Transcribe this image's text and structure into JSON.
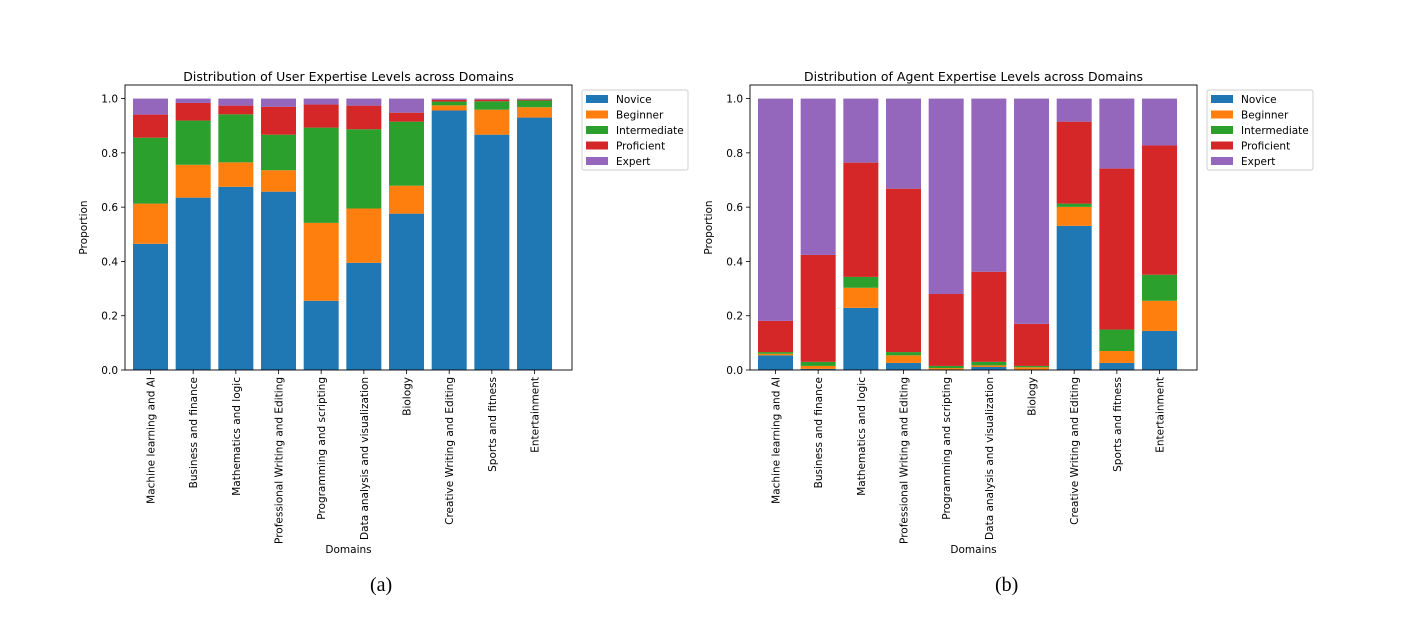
{
  "colors": {
    "Novice": "#1f77b4",
    "Beginner": "#ff7f0e",
    "Intermediate": "#2ca02c",
    "Proficient": "#d62728",
    "Expert": "#9467bd"
  },
  "captions": [
    "(a)",
    "(b)"
  ],
  "chart_data": [
    {
      "type": "bar",
      "stacked": true,
      "title": "Distribution of User Expertise Levels across Domains",
      "xlabel": "Domains",
      "ylabel": "Proportion",
      "ylim": [
        0,
        1.05
      ],
      "yticks": [
        "0.0",
        "0.2",
        "0.4",
        "0.6",
        "0.8",
        "1.0"
      ],
      "legend_placement": "outside-top-right",
      "categories": [
        "Machine learning and AI",
        "Business and finance",
        "Mathematics and logic",
        "Professional Writing and Editing",
        "Programming and scripting",
        "Data analysis and visualization",
        "Biology",
        "Creative Writing and Editing",
        "Sports and fitness",
        "Entertainment"
      ],
      "series": [
        {
          "name": "Novice",
          "values": [
            0.465,
            0.635,
            0.675,
            0.657,
            0.255,
            0.395,
            0.576,
            0.956,
            0.867,
            0.93
          ]
        },
        {
          "name": "Beginner",
          "values": [
            0.148,
            0.121,
            0.09,
            0.079,
            0.287,
            0.2,
            0.103,
            0.019,
            0.092,
            0.038
          ]
        },
        {
          "name": "Intermediate",
          "values": [
            0.243,
            0.163,
            0.177,
            0.131,
            0.351,
            0.292,
            0.236,
            0.014,
            0.031,
            0.025
          ]
        },
        {
          "name": "Proficient",
          "values": [
            0.085,
            0.065,
            0.032,
            0.103,
            0.085,
            0.087,
            0.033,
            0.006,
            0.006,
            0.003
          ]
        },
        {
          "name": "Expert",
          "values": [
            0.059,
            0.016,
            0.026,
            0.03,
            0.022,
            0.026,
            0.052,
            0.005,
            0.004,
            0.004
          ]
        }
      ]
    },
    {
      "type": "bar",
      "stacked": true,
      "title": "Distribution of Agent Expertise Levels across Domains",
      "xlabel": "Domains",
      "ylabel": "Proportion",
      "ylim": [
        0,
        1.05
      ],
      "yticks": [
        "0.0",
        "0.2",
        "0.4",
        "0.6",
        "0.8",
        "1.0"
      ],
      "legend_placement": "outside-top-right",
      "categories": [
        "Machine learning and AI",
        "Business and finance",
        "Mathematics and logic",
        "Professional Writing and Editing",
        "Programming and scripting",
        "Data analysis and visualization",
        "Biology",
        "Creative Writing and Editing",
        "Sports and fitness",
        "Entertainment"
      ],
      "series": [
        {
          "name": "Novice",
          "values": [
            0.054,
            0.004,
            0.229,
            0.026,
            0.002,
            0.011,
            0.002,
            0.531,
            0.026,
            0.144
          ]
        },
        {
          "name": "Beginner",
          "values": [
            0.006,
            0.011,
            0.074,
            0.028,
            0.005,
            0.006,
            0.008,
            0.07,
            0.044,
            0.111
          ]
        },
        {
          "name": "Intermediate",
          "values": [
            0.006,
            0.015,
            0.04,
            0.012,
            0.008,
            0.013,
            0.005,
            0.012,
            0.079,
            0.096
          ]
        },
        {
          "name": "Proficient",
          "values": [
            0.115,
            0.394,
            0.421,
            0.602,
            0.265,
            0.332,
            0.155,
            0.302,
            0.593,
            0.476
          ]
        },
        {
          "name": "Expert",
          "values": [
            0.819,
            0.576,
            0.236,
            0.332,
            0.72,
            0.638,
            0.83,
            0.085,
            0.258,
            0.173
          ]
        }
      ]
    }
  ]
}
